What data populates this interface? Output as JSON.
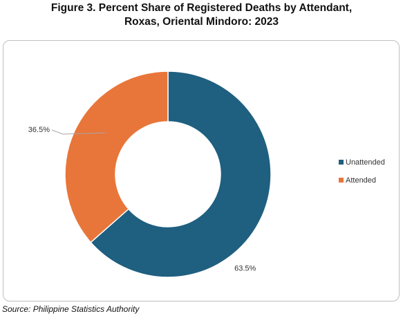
{
  "title_line1": "Figure 3. Percent Share of Registered Deaths by Attendant,",
  "title_line2": "Roxas, Oriental Mindoro: 2023",
  "source": "Source: Philippine Statistics Authority",
  "chart_data": {
    "type": "pie",
    "donut": true,
    "categories": [
      "Unattended",
      "Attended"
    ],
    "values": [
      63.5,
      36.5
    ],
    "labels": [
      "63.5%",
      "36.5%"
    ],
    "colors": [
      "#1f5f80",
      "#e8763a"
    ],
    "legend_position": "right"
  }
}
